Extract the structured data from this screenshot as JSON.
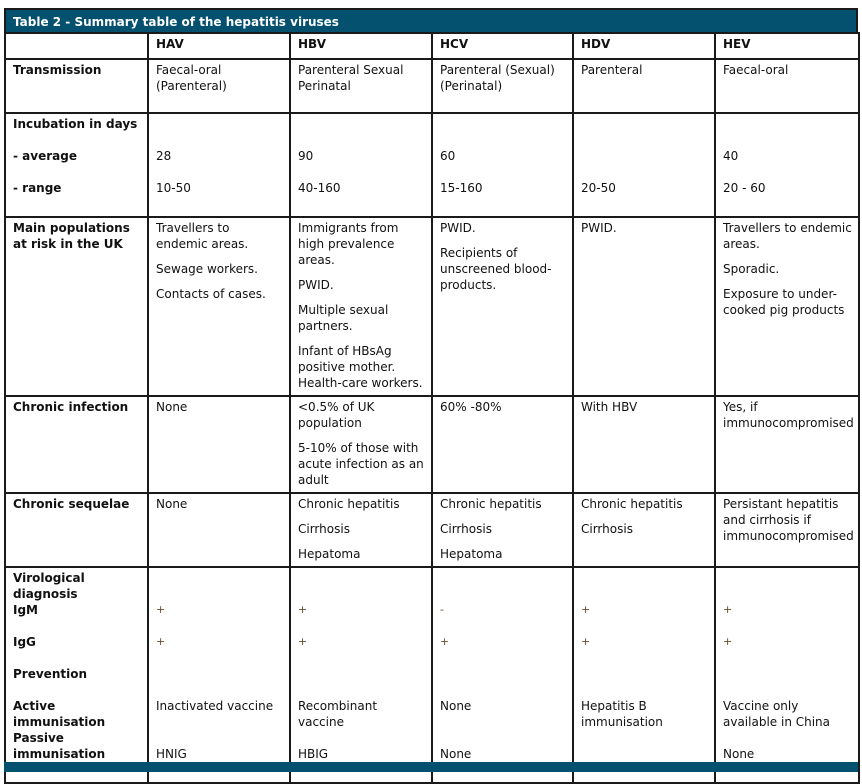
{
  "title": "Table 2 - Summary table of the hepatitis viruses",
  "columns": [
    "",
    "HAV",
    "HBV",
    "HCV",
    "HDV",
    "HEV"
  ],
  "transmission": {
    "label": "Transmission",
    "cells": [
      [
        "Faecal-oral (Parenteral)"
      ],
      [
        "Parenteral Sexual Perinatal"
      ],
      [
        "Parenteral (Sexual) (Perinatal)"
      ],
      [
        "Parenteral"
      ],
      [
        "Faecal-oral"
      ]
    ]
  },
  "incubation": {
    "label": "Incubation in days",
    "avg_label": "- average",
    "range_label": "- range",
    "average": [
      "28",
      "90",
      "60",
      "",
      "40"
    ],
    "range": [
      "10-50",
      "40-160",
      "15-160",
      "20-50",
      "20 - 60"
    ]
  },
  "populations": {
    "label": "Main populations at risk in the UK",
    "cells": [
      [
        "Travellers to endemic areas.",
        "Sewage workers.",
        "Contacts of cases."
      ],
      [
        "Immigrants from high prevalence areas.",
        "PWID.",
        "Multiple sexual partners.",
        "Infant of HBsAg positive mother. Health-care workers."
      ],
      [
        "PWID.",
        "Recipients of unscreened blood-products."
      ],
      [
        "PWID."
      ],
      [
        "Travellers to endemic areas.",
        "Sporadic.",
        "Exposure to under-cooked pig products"
      ]
    ]
  },
  "chronic_infection": {
    "label": "Chronic infection",
    "cells": [
      [
        "None"
      ],
      [
        "<0.5% of UK population",
        "5-10% of those with acute infection as an adult"
      ],
      [
        "60% -80%"
      ],
      [
        "With HBV"
      ],
      [
        "Yes, if immunocompromised"
      ]
    ]
  },
  "chronic_sequelae": {
    "label": "Chronic sequelae",
    "cells": [
      [
        "None"
      ],
      [
        "Chronic hepatitis",
        "Cirrhosis",
        "Hepatoma"
      ],
      [
        "Chronic hepatitis",
        "Cirrhosis",
        "Hepatoma"
      ],
      [
        "Chronic hepatitis",
        "Cirrhosis"
      ],
      [
        "Persistant hepatitis and cirrhosis if immunocompromised"
      ]
    ]
  },
  "virological": {
    "label": "Virological diagnosis",
    "igm_label": "IgM",
    "igg_label": "IgG",
    "prevention_label": "Prevention",
    "active_label": "Active immunisation",
    "passive_label": "Passive immunisation",
    "igm": [
      "+",
      "+",
      "-",
      "+",
      "+"
    ],
    "igg": [
      "+",
      "+",
      "+",
      "+",
      "+"
    ],
    "active": [
      "Inactivated vaccine",
      "Recombinant vaccine",
      "None",
      "Hepatitis B immunisation",
      "Vaccine only available in China"
    ],
    "passive": [
      "HNIG",
      "HBIG",
      "None",
      "",
      "None"
    ]
  },
  "colors": {
    "header_bg": "#04506f"
  }
}
